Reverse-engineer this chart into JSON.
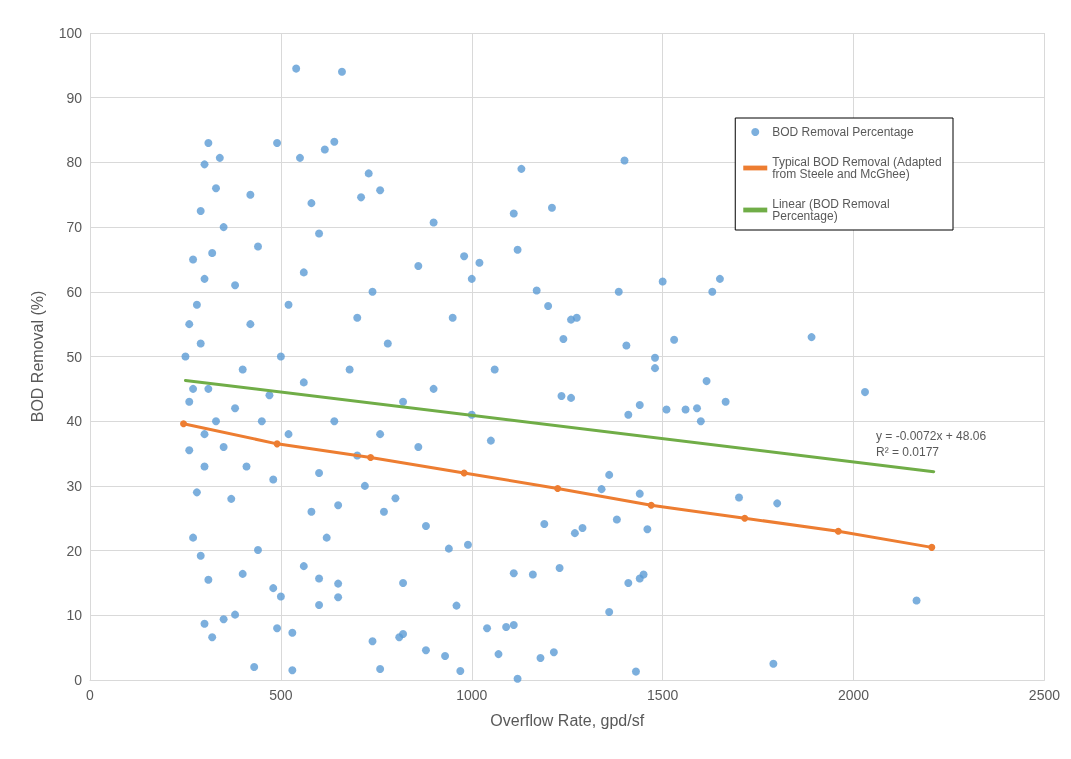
{
  "chart_data": {
    "type": "scatter",
    "xlabel": "Overflow Rate, gpd/sf",
    "ylabel": "BOD Removal (%)",
    "xlim": [
      0,
      2500
    ],
    "xticks": [
      0,
      500,
      1000,
      1500,
      2000,
      2500
    ],
    "ylim": [
      0,
      100
    ],
    "yticks": [
      0,
      10,
      20,
      30,
      40,
      50,
      60,
      70,
      80,
      90,
      100
    ],
    "grid": true,
    "legend": "top right",
    "annotations": [
      "y = -0.0072x + 48.06",
      "R² = 0.0177"
    ],
    "series": [
      {
        "name": "BOD Removal Percentage",
        "color": "#5b9bd5",
        "marker": "circle",
        "x": [
          540,
          660,
          2030,
          1890,
          2165,
          1790,
          1800,
          1700,
          1665,
          1650,
          1630,
          1615,
          1600,
          1590,
          1560,
          1530,
          1510,
          1500,
          1480,
          1480,
          1400,
          1385,
          1405,
          1410,
          1440,
          1450,
          1440,
          1410,
          1360,
          1430,
          1210,
          1130,
          1110,
          1120,
          1170,
          1200,
          1240,
          1260,
          1275,
          1235,
          1260,
          1360,
          1340,
          1440,
          1460,
          1380,
          1290,
          1270,
          1230,
          1190,
          1160,
          1110,
          1040,
          1090,
          1110,
          1180,
          1215,
          1120,
          970,
          1070,
          960,
          930,
          880,
          810,
          760,
          740,
          530,
          430,
          820,
          820,
          1060,
          1000,
          980,
          900,
          860,
          760,
          730,
          640,
          615,
          490,
          310,
          340,
          300,
          550,
          710,
          580,
          1020,
          1000,
          1050,
          990,
          940,
          880,
          800,
          770,
          700,
          650,
          620,
          580,
          560,
          600,
          650,
          650,
          600,
          530,
          490,
          500,
          480,
          440,
          400,
          380,
          350,
          300,
          320,
          310,
          290,
          270,
          260,
          280,
          300,
          330,
          310,
          290,
          280,
          300,
          320,
          350,
          330,
          290,
          270,
          260,
          380,
          400,
          420,
          370,
          410,
          450,
          470,
          500,
          520,
          560,
          600,
          560,
          520,
          480,
          600,
          640,
          680,
          700,
          740,
          780,
          820,
          860,
          900,
          950,
          760,
          720,
          350,
          380,
          300,
          270,
          440,
          420,
          250,
          260
        ],
        "values": [
          94.5,
          94,
          44.5,
          53,
          12.3,
          2.5,
          27.3,
          28.2,
          43,
          62,
          60,
          46.2,
          40,
          42,
          41.8,
          52.6,
          41.8,
          61.6,
          49.8,
          48.2,
          80.3,
          60,
          51.7,
          41,
          42.5,
          16.3,
          15.7,
          15,
          10.5,
          1.3,
          73,
          79,
          72.1,
          66.5,
          60.2,
          57.8,
          52.7,
          55.7,
          56,
          43.9,
          43.6,
          31.7,
          29.5,
          28.8,
          23.3,
          24.8,
          23.5,
          22.7,
          17.3,
          24.1,
          16.3,
          16.5,
          8,
          8.2,
          8.5,
          3.4,
          4.3,
          0.2,
          1.4,
          4,
          11.5,
          3.7,
          4.6,
          6.6,
          1.7,
          6,
          1.5,
          2,
          15,
          7.1,
          48,
          62,
          65.5,
          70.7,
          64,
          75.7,
          78.3,
          83.2,
          82,
          83,
          83,
          80.7,
          79.7,
          80.7,
          74.6,
          73.7,
          64.5,
          41,
          37,
          20.9,
          20.3,
          23.8,
          28.1,
          26,
          34.7,
          27,
          22,
          26,
          17.6,
          15.7,
          14.9,
          12.8,
          11.6,
          7.3,
          8,
          12.9,
          14.2,
          20.1,
          16.4,
          10.1,
          9.4,
          8.7,
          6.6,
          15.5,
          19.2,
          22,
          35.5,
          29,
          33,
          40,
          45,
          52,
          58,
          62,
          66,
          70,
          76,
          72.5,
          65,
          55,
          61,
          48,
          55,
          28,
          33,
          40,
          44,
          50,
          58,
          63,
          69,
          46,
          38,
          31,
          32,
          40,
          48,
          56,
          60,
          52,
          43,
          36,
          45,
          56,
          38,
          30,
          36,
          42,
          38,
          45,
          67,
          75,
          50,
          43
        ]
      },
      {
        "name": "Typical BOD Removal (Adapted from Steele and McGhee)",
        "type": "line",
        "color": "#ed7d31",
        "marker": "circle",
        "x": [
          245,
          490,
          735,
          980,
          1225,
          1470,
          1715,
          1960,
          2205
        ],
        "values": [
          39.6,
          36.5,
          34.4,
          32,
          29.6,
          27,
          25,
          23,
          20.5
        ]
      },
      {
        "name": "Linear (BOD Removal Percentage)",
        "type": "line",
        "color": "#70ad47",
        "marker": "none",
        "x": [
          250,
          2210
        ],
        "values": [
          46.3,
          32.2
        ]
      }
    ]
  }
}
